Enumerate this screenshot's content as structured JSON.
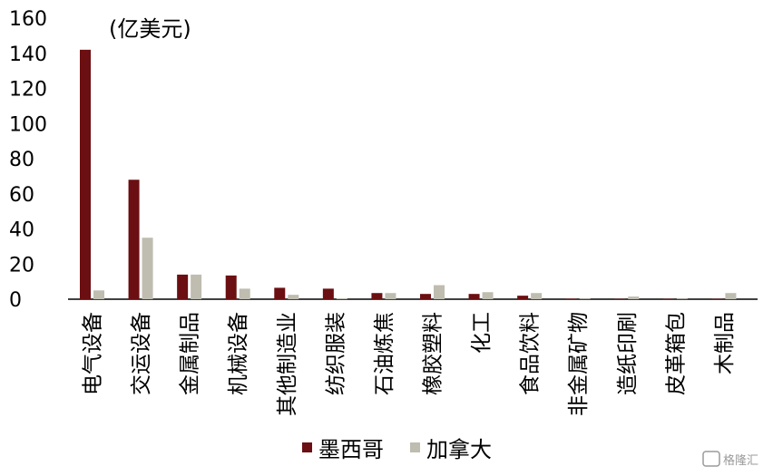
{
  "chart_data": {
    "type": "bar",
    "unit_label": "(亿美元)",
    "categories": [
      "电气设备",
      "交运设备",
      "金属制品",
      "机械设备",
      "其他制造业",
      "纺织服装",
      "石油炼焦",
      "橡胶塑料",
      "化工",
      "食品饮料",
      "非金属矿物",
      "造纸印刷",
      "皮革箱包",
      "木制品"
    ],
    "series": [
      {
        "name": "墨西哥",
        "color": "#6b0f12",
        "values": [
          142,
          68,
          14,
          13.5,
          6.5,
          6,
          3.5,
          3,
          3,
          2,
          0.3,
          0.2,
          0.2,
          0.2
        ]
      },
      {
        "name": "加拿大",
        "color": "#bfbcb0",
        "values": [
          5,
          35,
          14,
          6,
          2.5,
          0.5,
          3.5,
          8,
          4,
          3.5,
          0.3,
          1.5,
          0.3,
          3.5
        ]
      }
    ],
    "y_ticks": [
      "0",
      "20",
      "40",
      "60",
      "80",
      "100",
      "120",
      "140",
      "160"
    ],
    "ylim": [
      0,
      160
    ],
    "grid": false,
    "legend_position": "bottom"
  },
  "watermark": "格隆汇"
}
